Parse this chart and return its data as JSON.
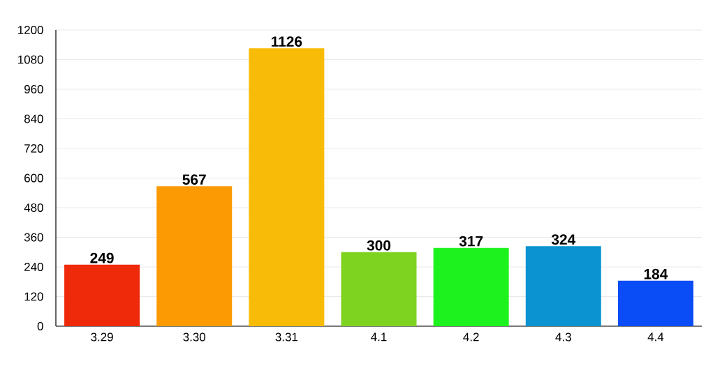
{
  "chart_data": {
    "type": "bar",
    "categories": [
      "3.29",
      "3.30",
      "3.31",
      "4.1",
      "4.2",
      "4.3",
      "4.4"
    ],
    "values": [
      249,
      567,
      1126,
      300,
      317,
      324,
      184
    ],
    "colors": [
      "#ef2a0a",
      "#fb9a02",
      "#f8bc08",
      "#7ed321",
      "#1ef21e",
      "#0a93d0",
      "#0a4cf5"
    ],
    "ylim": [
      0,
      1200
    ],
    "yticks": [
      0,
      120,
      240,
      360,
      480,
      600,
      720,
      840,
      960,
      1080,
      1200
    ],
    "grid": "y",
    "data_labels": true
  }
}
